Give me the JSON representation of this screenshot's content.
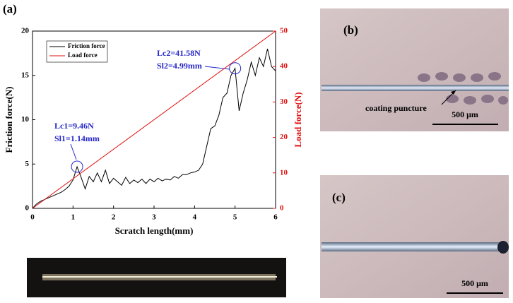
{
  "chart_data": {
    "type": "line",
    "panel_label": "(a)",
    "x_label": "Scratch length(mm)",
    "y_label": "Friction force(N)",
    "y2_label": "Load force(N)",
    "xlim": [
      0,
      6
    ],
    "xticks": [
      0,
      1,
      2,
      3,
      4,
      5,
      6
    ],
    "ylim": [
      0,
      20
    ],
    "yticks": [
      0,
      5,
      10,
      15,
      20
    ],
    "y2lim": [
      0,
      50
    ],
    "y2ticks": [
      0,
      10,
      20,
      30,
      40,
      50
    ],
    "legend": "top-left",
    "series": [
      {
        "name": "Friction force",
        "color": "#000000",
        "x": [
          0,
          0.1,
          0.2,
          0.3,
          0.4,
          0.5,
          0.6,
          0.7,
          0.8,
          0.9,
          1.0,
          1.1,
          1.2,
          1.3,
          1.4,
          1.5,
          1.6,
          1.7,
          1.8,
          1.9,
          2.0,
          2.1,
          2.2,
          2.3,
          2.4,
          2.5,
          2.6,
          2.7,
          2.8,
          2.9,
          3.0,
          3.1,
          3.2,
          3.3,
          3.4,
          3.5,
          3.6,
          3.7,
          3.8,
          3.9,
          4.0,
          4.1,
          4.2,
          4.3,
          4.4,
          4.5,
          4.6,
          4.7,
          4.8,
          4.9,
          5.0,
          5.1,
          5.2,
          5.3,
          5.4,
          5.5,
          5.6,
          5.7,
          5.8,
          5.9,
          6.0
        ],
        "values": [
          0,
          0.5,
          0.8,
          1.0,
          1.2,
          1.4,
          1.6,
          1.8,
          2.1,
          2.5,
          3.2,
          4.7,
          3.5,
          2.2,
          3.6,
          3.0,
          4.0,
          3.0,
          4.3,
          2.8,
          3.4,
          3.0,
          2.6,
          3.5,
          2.8,
          3.2,
          2.9,
          3.3,
          2.8,
          3.3,
          3.0,
          3.4,
          3.1,
          3.3,
          3.2,
          3.6,
          3.4,
          3.8,
          3.8,
          4.0,
          4.1,
          4.3,
          5.0,
          7.0,
          9.0,
          9.3,
          10.5,
          12.5,
          13.0,
          15.0,
          15.8,
          11.0,
          13.0,
          14.5,
          16.5,
          15.0,
          17.0,
          16.0,
          18.0,
          16.0,
          15.5
        ]
      },
      {
        "name": "Load force",
        "color": "#e01010",
        "axis": "y2",
        "x": [
          0,
          6
        ],
        "values": [
          0,
          50
        ]
      }
    ],
    "annotations": [
      {
        "x": 1.1,
        "y": 4.7,
        "lines": [
          "Lc1=9.46N",
          "Sl1=1.14mm"
        ]
      },
      {
        "x": 5.0,
        "y": 15.8,
        "lines": [
          "Lc2=41.58N",
          "Sl2=4.99mm"
        ]
      }
    ]
  },
  "panels": {
    "b": {
      "label": "(b)",
      "note": "coating puncture",
      "scale": "500 μm"
    },
    "c": {
      "label": "(c)",
      "scale": "500 μm"
    }
  }
}
